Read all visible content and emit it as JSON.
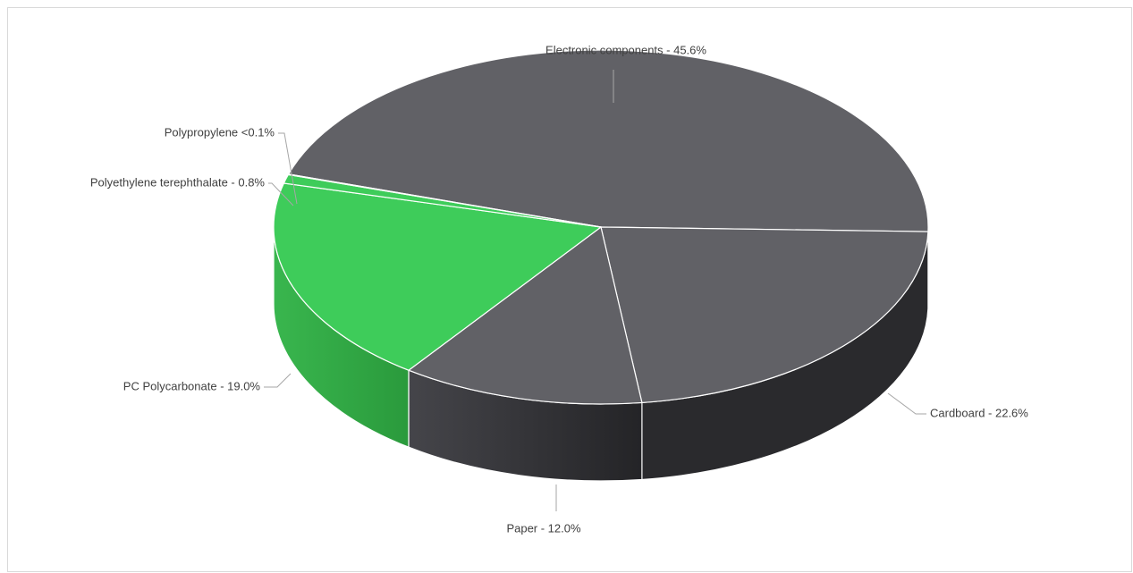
{
  "chart_data": {
    "type": "pie",
    "title": "",
    "legend": "none",
    "slices": [
      {
        "name": "Electronic components",
        "value": 45.6,
        "label": "Electronic components - 45.6%",
        "color": "#616166",
        "side_color": "#2a2a2d"
      },
      {
        "name": "Cardboard",
        "value": 22.6,
        "label": "Cardboard - 22.6%",
        "color": "#616166",
        "side_color": "#2a2a2d"
      },
      {
        "name": "Paper",
        "value": 12.0,
        "label": "Paper - 12.0%",
        "color": "#616166",
        "side_color": "#3a3a3e"
      },
      {
        "name": "PC Polycarbonate",
        "value": 19.0,
        "label": "PC Polycarbonate - 19.0%",
        "color": "#3ecc5a",
        "side_color": "#2e9f40"
      },
      {
        "name": "Polyethylene terephthalate",
        "value": 0.8,
        "label": "Polyethylene terephthalate - 0.8%",
        "color": "#3ecc5a",
        "side_color": "#2e9f40"
      },
      {
        "name": "Polypropylene",
        "value": 0.05,
        "label": "Polypropylene <0.1%",
        "color": "#3ecc5a",
        "side_color": "#2e9f40"
      }
    ]
  }
}
